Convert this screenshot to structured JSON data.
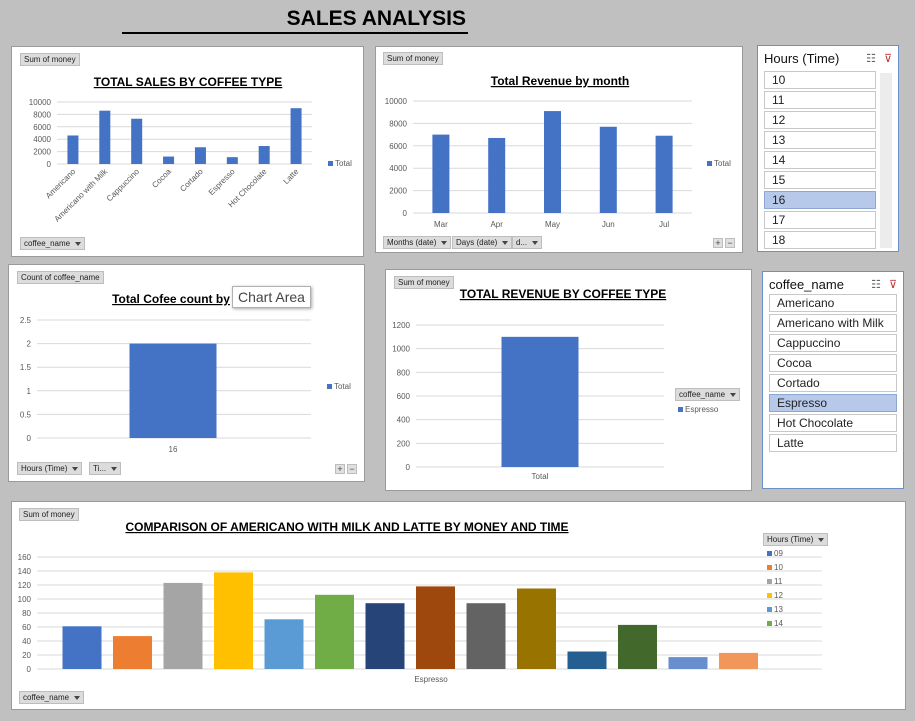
{
  "page": {
    "title": "SALES ANALYSIS"
  },
  "colors": {
    "bar": "#4472c4",
    "grid": "#d9d9d9",
    "axis_text": "#595959",
    "slicer_selected": "#b7c9ea",
    "field_button": "#dcdcdc"
  },
  "chart1": {
    "field_value": "Sum of money",
    "row_field": "coffee_name",
    "legend": "Total",
    "chart_data": {
      "type": "bar",
      "title": "TOTAL SALES BY COFFEE TYPE",
      "categories": [
        "Americano",
        "Americano with Milk",
        "Cappuccino",
        "Cocoa",
        "Cortado",
        "Espresso",
        "Hot Chocolate",
        "Latte"
      ],
      "series": [
        {
          "name": "Total",
          "values": [
            4600,
            8600,
            7300,
            1200,
            2700,
            1100,
            2900,
            9000
          ]
        }
      ],
      "yticks": [
        0,
        2000,
        4000,
        6000,
        8000,
        10000
      ],
      "ylim": [
        0,
        10000
      ],
      "legend_position": "right",
      "grid": true
    }
  },
  "chart2": {
    "field_value": "Sum of money",
    "row_fields": [
      "Months (date)",
      "Days (date)",
      "d..."
    ],
    "legend": "Total",
    "chart_data": {
      "type": "bar",
      "title": "Total Revenue by month",
      "categories": [
        "Mar",
        "Apr",
        "May",
        "Jun",
        "Jul"
      ],
      "series": [
        {
          "name": "Total",
          "values": [
            7000,
            6700,
            9100,
            7700,
            6900
          ]
        }
      ],
      "yticks": [
        0,
        2000,
        4000,
        6000,
        8000,
        10000
      ],
      "ylim": [
        0,
        10000
      ],
      "legend_position": "right",
      "grid": true
    }
  },
  "chart3": {
    "field_value": "Count of coffee_name",
    "row_fields": [
      "Hours (Time)",
      "Ti..."
    ],
    "legend": "Total",
    "tooltip": "Chart Area",
    "chart_data": {
      "type": "bar",
      "title": "Total Cofee count by",
      "categories": [
        "16"
      ],
      "series": [
        {
          "name": "Total",
          "values": [
            2
          ]
        }
      ],
      "yticks": [
        0,
        0.5,
        1,
        1.5,
        2,
        2.5
      ],
      "ylim": [
        0,
        2.5
      ],
      "legend_position": "right",
      "grid": true
    }
  },
  "chart4": {
    "field_value": "Sum of money",
    "legend_field": "coffee_name",
    "legend": "Espresso",
    "chart_data": {
      "type": "bar",
      "title": "TOTAL REVENUE BY COFFEE TYPE",
      "categories": [
        "Total"
      ],
      "series": [
        {
          "name": "Espresso",
          "values": [
            1100
          ]
        }
      ],
      "yticks": [
        0,
        200,
        400,
        600,
        800,
        1000,
        1200
      ],
      "ylim": [
        0,
        1200
      ],
      "legend_position": "right",
      "grid": true
    }
  },
  "chart5": {
    "field_value": "Sum of money",
    "row_field": "coffee_name",
    "legend_field": "Hours (Time)",
    "chart_data": {
      "type": "bar",
      "title": "COMPARISON OF AMERICANO WITH MILK AND LATTE BY MONEY AND TIME",
      "categories": [
        "Espresso"
      ],
      "series": [
        {
          "name": "09",
          "values": [
            61
          ],
          "color": "#4472c4"
        },
        {
          "name": "10",
          "values": [
            47
          ],
          "color": "#ed7d31"
        },
        {
          "name": "11",
          "values": [
            123
          ],
          "color": "#a5a5a5"
        },
        {
          "name": "12",
          "values": [
            138
          ],
          "color": "#ffc000"
        },
        {
          "name": "13",
          "values": [
            71
          ],
          "color": "#5b9bd5"
        },
        {
          "name": "14",
          "values": [
            106
          ],
          "color": "#70ad47"
        },
        {
          "name": "",
          "values": [
            94
          ],
          "color": "#264478"
        },
        {
          "name": "",
          "values": [
            118
          ],
          "color": "#9e480e"
        },
        {
          "name": "",
          "values": [
            94
          ],
          "color": "#636363"
        },
        {
          "name": "",
          "values": [
            115
          ],
          "color": "#997300"
        },
        {
          "name": "",
          "values": [
            25
          ],
          "color": "#255e91"
        },
        {
          "name": "",
          "values": [
            63
          ],
          "color": "#43682b"
        },
        {
          "name": "",
          "values": [
            17
          ],
          "color": "#698ed0"
        },
        {
          "name": "",
          "values": [
            23
          ],
          "color": "#f1975a"
        }
      ],
      "yticks": [
        0,
        20,
        40,
        60,
        80,
        100,
        120,
        140,
        160
      ],
      "ylim": [
        0,
        160
      ],
      "legend_position": "right",
      "grid": true
    }
  },
  "slicer_hours": {
    "title": "Hours (Time)",
    "items": [
      "10",
      "11",
      "12",
      "13",
      "14",
      "15",
      "16",
      "17",
      "18"
    ],
    "selected": "16"
  },
  "slicer_coffee": {
    "title": "coffee_name",
    "items": [
      "Americano",
      "Americano with Milk",
      "Cappuccino",
      "Cocoa",
      "Cortado",
      "Espresso",
      "Hot Chocolate",
      "Latte"
    ],
    "selected": "Espresso"
  }
}
